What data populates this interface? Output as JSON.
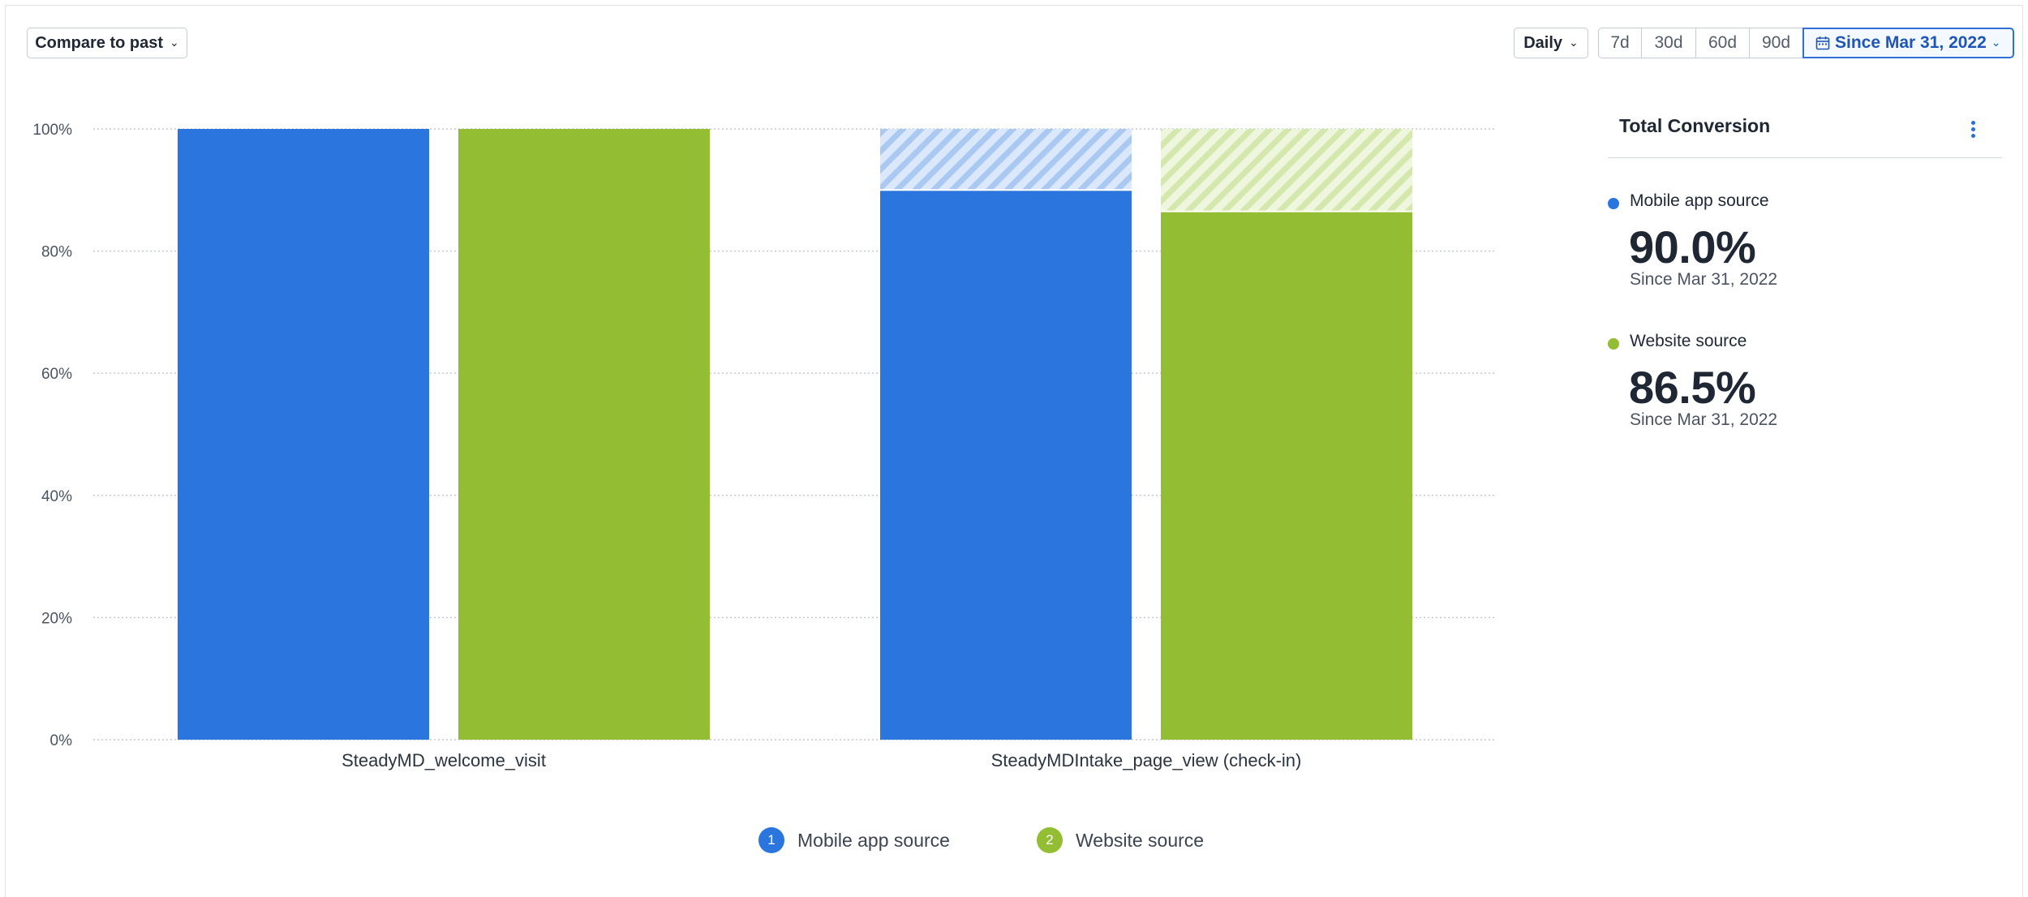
{
  "toolbar": {
    "compare_label": "Compare to past",
    "interval_label": "Daily",
    "ranges": [
      "7d",
      "30d",
      "60d",
      "90d"
    ],
    "active_range": "Since Mar 31, 2022"
  },
  "colors": {
    "mobile": "#2a75de",
    "website": "#93bd33",
    "mobile_hatch": "#a9c8f2",
    "website_hatch": "#d4e7ac"
  },
  "chart_data": {
    "type": "bar",
    "categories": [
      "SteadyMD_welcome_visit",
      "SteadyMDIntake_page_view (check-in)"
    ],
    "series": [
      {
        "name": "Mobile app source",
        "values": [
          100,
          90.0
        ],
        "color": "#2a75de"
      },
      {
        "name": "Website source",
        "values": [
          100,
          86.5
        ],
        "color": "#93bd33"
      }
    ],
    "ylim": [
      0,
      100
    ],
    "yticks": [
      "0%",
      "20%",
      "40%",
      "60%",
      "80%",
      "100%"
    ],
    "ytick_values": [
      0,
      20,
      40,
      60,
      80,
      100
    ],
    "grid": true,
    "legend": "bottom-center",
    "dropoff_hatched": true
  },
  "panel": {
    "title": "Total Conversion",
    "metrics": [
      {
        "label": "Mobile app source",
        "value": "90.0%",
        "since": "Since Mar 31, 2022",
        "color": "#2a75de"
      },
      {
        "label": "Website source",
        "value": "86.5%",
        "since": "Since Mar 31, 2022",
        "color": "#93bd33"
      }
    ]
  },
  "legend": {
    "items": [
      {
        "index": "1",
        "label": "Mobile app source",
        "color": "#2a75de"
      },
      {
        "index": "2",
        "label": "Website source",
        "color": "#93bd33"
      }
    ]
  }
}
